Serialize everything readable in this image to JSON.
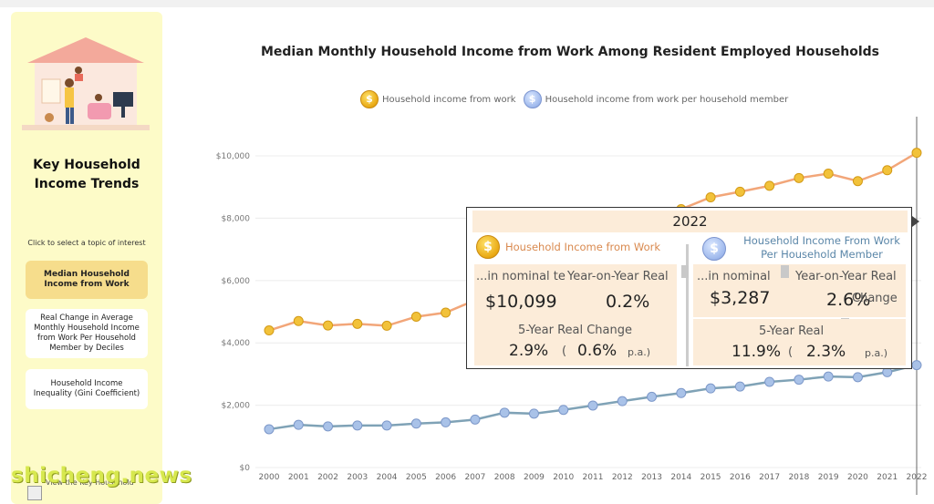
{
  "sidebar": {
    "title": "Key Household\nIncome Trends",
    "prompt": "Click to select a topic of interest",
    "topics": [
      {
        "label": "Median Household Income from Work",
        "active": true
      },
      {
        "label": "Real Change in Average Monthly Household Income from Work Per Household Member by Deciles",
        "active": false
      },
      {
        "label": "Household Income Inequality (Gini Coefficient)",
        "active": false
      },
      {
        "label": "View the Key Household",
        "active": false
      }
    ]
  },
  "chart_data": {
    "type": "line",
    "title": "Median Monthly Household Income from Work Among Resident Employed Households",
    "x": [
      "2000",
      "2001",
      "2002",
      "2003",
      "2004",
      "2005",
      "2006",
      "2007",
      "2008",
      "2009",
      "2010",
      "2011",
      "2012",
      "2013",
      "2014",
      "2015",
      "2016",
      "2017",
      "2018",
      "2019",
      "2020",
      "2021",
      "2022"
    ],
    "series": [
      {
        "name": "Household income from work",
        "color": "#f2a679",
        "values": [
          4400,
          4700,
          4560,
          4610,
          4550,
          4840,
          4970,
          5370,
          5600,
          5600,
          5600,
          6200,
          6550,
          7100,
          8290,
          8670,
          8850,
          9040,
          9290,
          9430,
          9190,
          9540,
          10099
        ]
      },
      {
        "name": "Household income from work per household member",
        "color": "#7fa2b6",
        "values": [
          1230,
          1370,
          1320,
          1350,
          1350,
          1410,
          1450,
          1540,
          1760,
          1730,
          1850,
          1990,
          2130,
          2270,
          2390,
          2540,
          2600,
          2750,
          2820,
          2920,
          2900,
          3060,
          3287
        ]
      }
    ],
    "ylim": [
      0,
      11200
    ],
    "yticks": [
      "$0",
      "$2,000",
      "$4,000",
      "$6,000",
      "$8,000",
      "$10,000"
    ],
    "grid": true,
    "legend_position": "top"
  },
  "tooltip": {
    "year": "2022",
    "work": {
      "title": "Household Income from Work",
      "nominal_label": "...in nominal terms",
      "nominal_value": "$10,099",
      "yoy_label": "Year-on-Year Real",
      "yoy_value": "0.2%",
      "five_label": "5-Year Real Change",
      "five_value": "2.9%",
      "five_open": "(",
      "five_pa": "0.6%",
      "pa_label": "p.a.)"
    },
    "member": {
      "title": "Household Income From Work\nPer Household Member",
      "nominal_label": "...in nominal",
      "nominal_value": "$3,287",
      "yoy_label": "Year-on-Year Real",
      "yoy_value": "2.6%",
      "change_label": "Change",
      "five_label": "5-Year Real",
      "five_value": "11.9%",
      "five_open": "(",
      "five_pa": "2.3%",
      "pa_label": "p.a.)"
    }
  },
  "watermark": "shicheng.news",
  "colors": {
    "sidebar_bg": "#fdfbc8",
    "active_topic": "#f6dd8c",
    "tooltip_cell": "#fcecd9"
  }
}
